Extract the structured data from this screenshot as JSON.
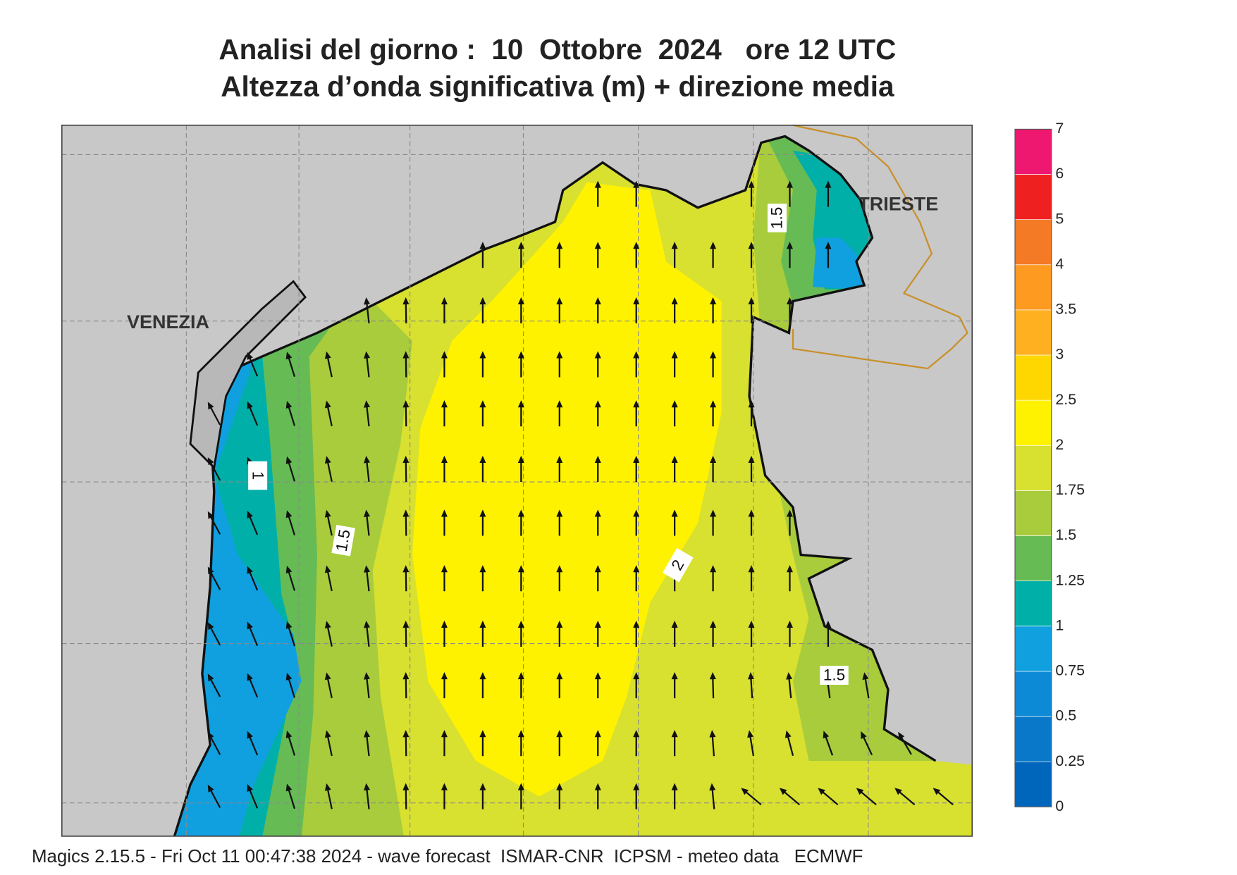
{
  "header": {
    "title": "Analisi del giorno :  10  Ottobre  2024   ore 12 UTC",
    "subtitle": "Altezza d’onda significativa (m) + direzione media"
  },
  "map": {
    "places": [
      "VENEZIA",
      "TRIESTE"
    ],
    "contour_labels": [
      "1.5",
      "1",
      "1.5",
      "2",
      "1.5"
    ]
  },
  "legend": {
    "levels": [
      0,
      0.25,
      0.5,
      0.75,
      1,
      1.25,
      1.5,
      1.75,
      2,
      2.5,
      3,
      3.5,
      4,
      5,
      6,
      7
    ],
    "colors": [
      "#0066bb",
      "#0a78c8",
      "#0d8ad6",
      "#10a0e0",
      "#00b0a8",
      "#66bb55",
      "#a8cc3c",
      "#d8e030",
      "#fff200",
      "#ffd700",
      "#ffb020",
      "#ff9a20",
      "#f57a25",
      "#ee2020",
      "#ee1870"
    ]
  },
  "footer": "Magics 2.15.5 - Fri Oct 11 00:47:38 2024 - wave forecast  ISMAR-CNR  ICPSM - meteo data   ECMWF"
}
